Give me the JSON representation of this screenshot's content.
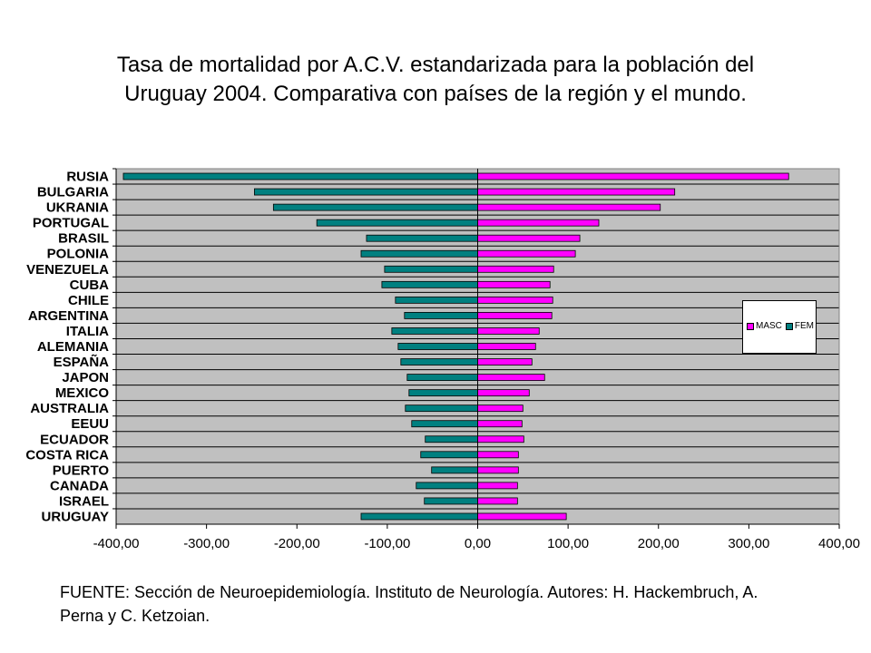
{
  "title_lines": [
    "Tasa de mortalidad por A.C.V. estandarizada para la población del",
    "Uruguay 2004. Comparativa con países de la región y el mundo."
  ],
  "source_text": "FUENTE: Sección de Neuroepidemiología. Instituto de Neurología. Autores: H. Hackembruch, A. Perna y C. Ketzoian.",
  "colors": {
    "masc": "#ff00ff",
    "fem": "#008080",
    "plot_bg": "#c0c0c0"
  },
  "chart_data": {
    "type": "bar",
    "orientation": "horizontal",
    "categories": [
      "RUSIA",
      "BULGARIA",
      "UKRANIA",
      "PORTUGAL",
      "BRASIL",
      "POLONIA",
      "VENEZUELA",
      "CUBA",
      "CHILE",
      "ARGENTINA",
      "ITALIA",
      "ALEMANIA",
      "ESPAÑA",
      "JAPON",
      "MEXICO",
      "AUSTRALIA",
      "EEUU",
      "ECUADOR",
      "COSTA RICA",
      "PUERTO",
      "CANADA",
      "ISRAEL",
      "URUGUAY"
    ],
    "series": [
      {
        "name": "MASC",
        "values": [
          344,
          218,
          202,
          134,
          113,
          108,
          84,
          80,
          83,
          82,
          68,
          64,
          60,
          74,
          57,
          50,
          49,
          51,
          45,
          45,
          44,
          44,
          98
        ]
      },
      {
        "name": "FEM",
        "values": [
          -392,
          -247,
          -226,
          -178,
          -123,
          -129,
          -103,
          -106,
          -91,
          -81,
          -95,
          -88,
          -85,
          -78,
          -76,
          -80,
          -73,
          -58,
          -63,
          -51,
          -68,
          -59,
          -129
        ]
      }
    ],
    "xlim": [
      -400,
      400
    ],
    "xticks": [
      "-400,00",
      "-300,00",
      "-200,00",
      "-100,00",
      "0,00",
      "100,00",
      "200,00",
      "300,00",
      "400,00"
    ],
    "xtick_values": [
      -400,
      -300,
      -200,
      -100,
      0,
      100,
      200,
      300,
      400
    ],
    "grid": true,
    "legend_position": "right"
  }
}
